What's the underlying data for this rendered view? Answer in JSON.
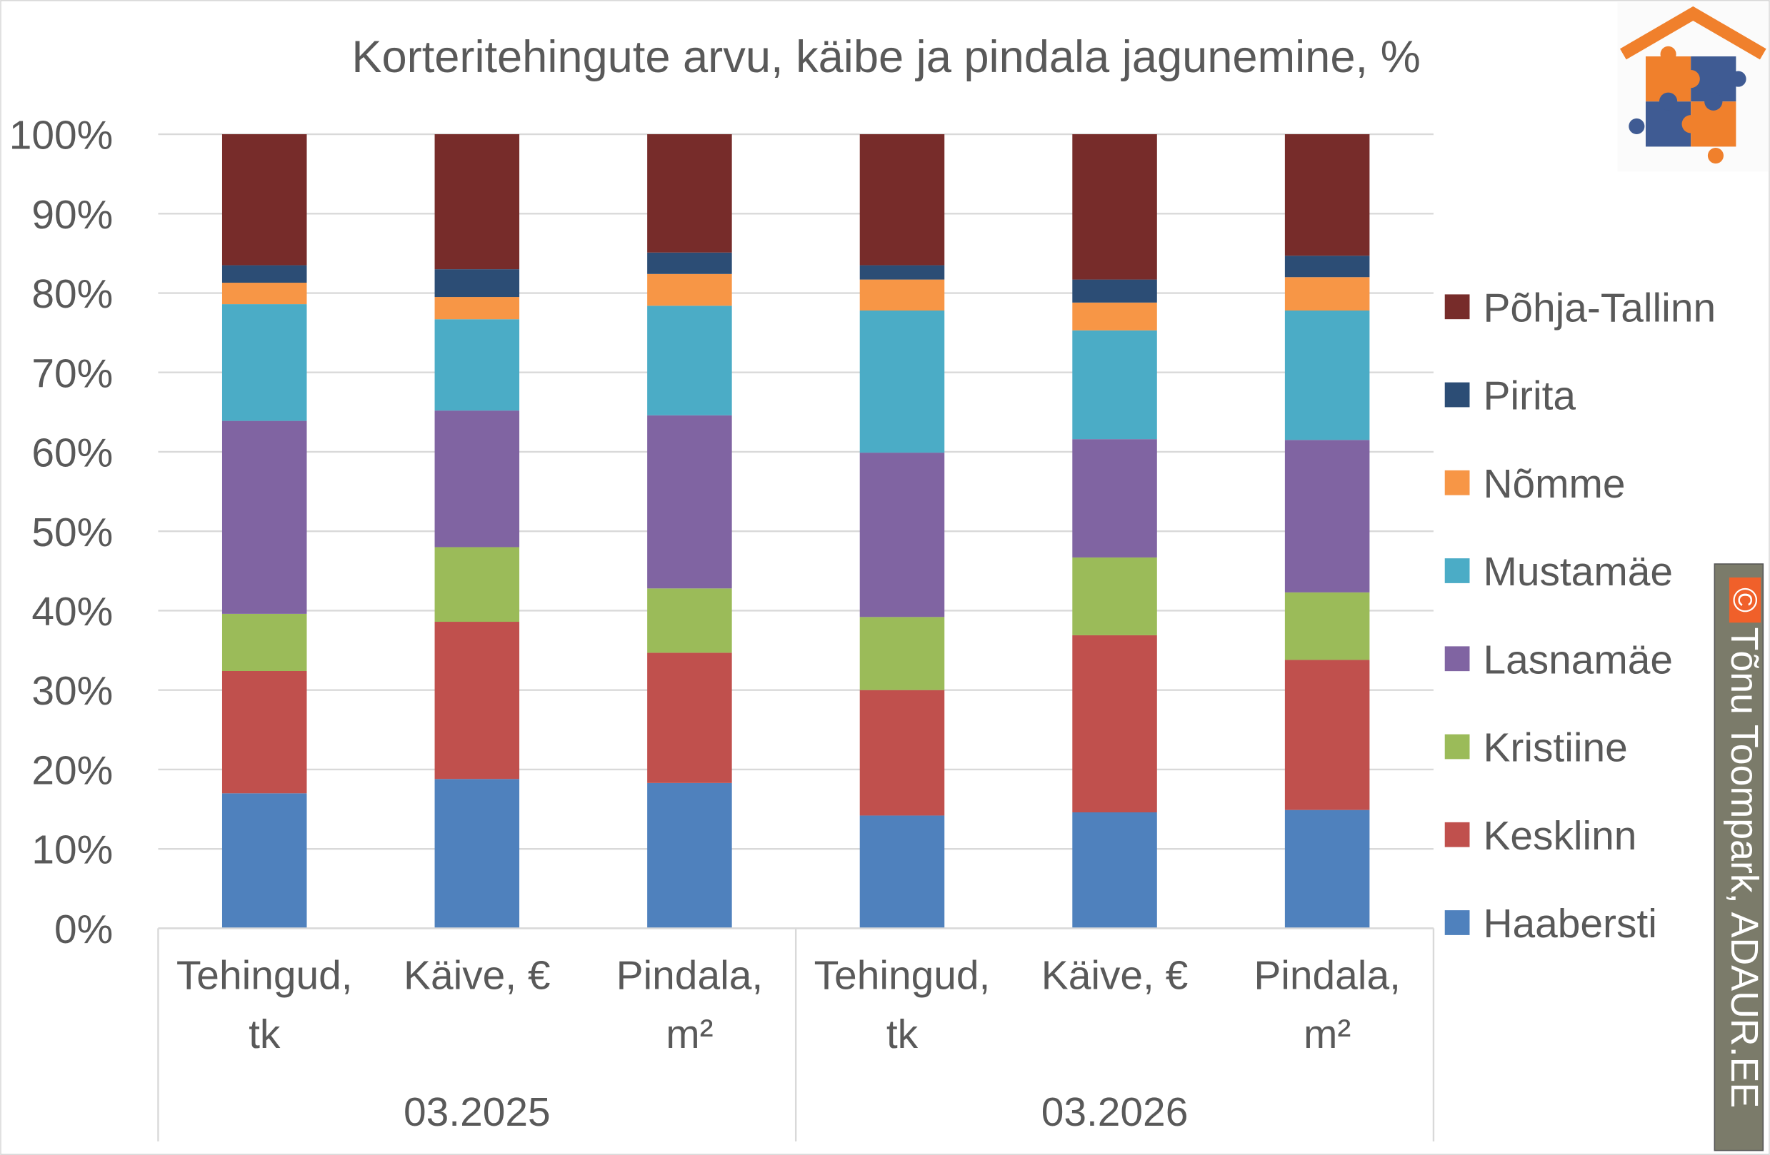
{
  "chart_data": {
    "type": "bar",
    "stacked": "percent",
    "title": "Korteritehingute arvu, käibe ja pindala jagunemine, %",
    "ylim": [
      0,
      100
    ],
    "yticks": [
      "0%",
      "10%",
      "20%",
      "30%",
      "40%",
      "50%",
      "60%",
      "70%",
      "80%",
      "90%",
      "100%"
    ],
    "grid": true,
    "legend_position": "right",
    "groups": [
      "03.2025",
      "03.2026"
    ],
    "categories": [
      {
        "group": "03.2025",
        "lines": [
          "Tehingud,",
          "tk"
        ]
      },
      {
        "group": "03.2025",
        "lines": [
          "Käive, €"
        ]
      },
      {
        "group": "03.2025",
        "lines": [
          "Pindala,",
          "m²"
        ]
      },
      {
        "group": "03.2026",
        "lines": [
          "Tehingud,",
          "tk"
        ]
      },
      {
        "group": "03.2026",
        "lines": [
          "Käive, €"
        ]
      },
      {
        "group": "03.2026",
        "lines": [
          "Pindala,",
          "m²"
        ]
      }
    ],
    "series": [
      {
        "name": "Haabersti",
        "color": "#4f81bd",
        "values": [
          17.0,
          18.8,
          18.3,
          14.2,
          14.6,
          14.9
        ]
      },
      {
        "name": "Kesklinn",
        "color": "#c0504d",
        "values": [
          15.4,
          19.8,
          16.4,
          15.8,
          22.3,
          18.9
        ]
      },
      {
        "name": "Kristiine",
        "color": "#9bbb59",
        "values": [
          7.2,
          9.4,
          8.1,
          9.2,
          9.8,
          8.5
        ]
      },
      {
        "name": "Lasnamäe",
        "color": "#8064a2",
        "values": [
          24.3,
          17.2,
          21.8,
          20.7,
          14.9,
          19.2
        ]
      },
      {
        "name": "Mustamäe",
        "color": "#4bacc6",
        "values": [
          14.7,
          11.5,
          13.8,
          17.9,
          13.7,
          16.3
        ]
      },
      {
        "name": "Nõmme",
        "color": "#f79646",
        "values": [
          2.7,
          2.8,
          4.0,
          3.9,
          3.5,
          4.2
        ]
      },
      {
        "name": "Pirita",
        "color": "#2c4d75",
        "values": [
          2.2,
          3.5,
          2.7,
          1.8,
          2.9,
          2.7
        ]
      },
      {
        "name": "Põhja-Tallinn",
        "color": "#772c2a",
        "values": [
          16.5,
          17.0,
          14.9,
          16.5,
          18.3,
          15.3
        ]
      }
    ]
  },
  "watermark": {
    "symbol": "©",
    "text": "Tõnu Toompark, ADAUR.EE"
  },
  "logo": {
    "icon": "house-puzzle-logo",
    "colors": [
      "#f0802c",
      "#3f5b93"
    ]
  }
}
